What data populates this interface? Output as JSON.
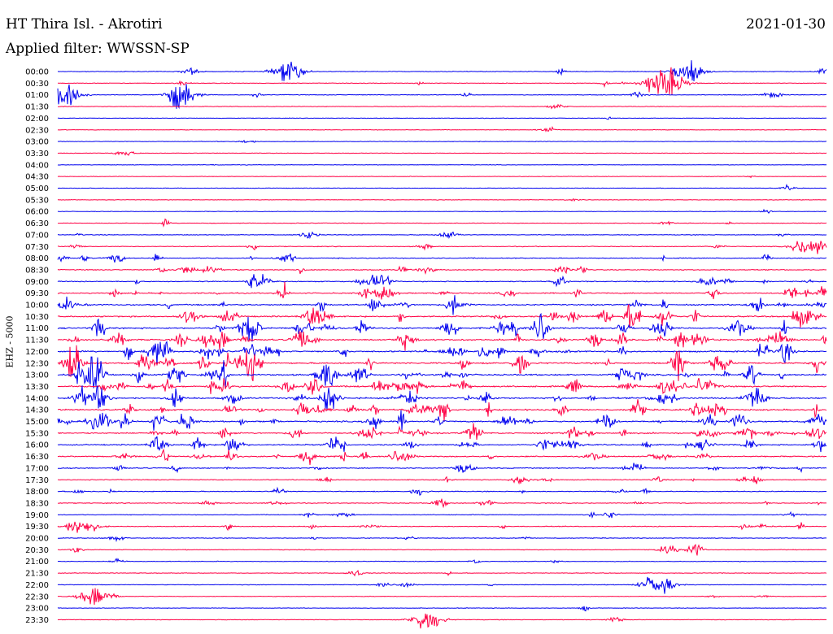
{
  "header": {
    "station": "HT Thira Isl. - Akrotiri",
    "date": "2021-01-30",
    "filter": "Applied filter: WWSSN-SP"
  },
  "channel_label": "EHZ - 5000",
  "colors": {
    "blue": "#0000ee",
    "red": "#ff0044",
    "background": "#ffffff"
  },
  "chart_data": {
    "type": "line",
    "title": "HT Thira Isl. - Akrotiri",
    "subtitle": "Applied filter: WWSSN-SP",
    "ylabel": "EHZ - 5000",
    "xlabel": "",
    "row_labels": [
      "00:00",
      "00:30",
      "01:00",
      "01:30",
      "02:00",
      "02:30",
      "03:00",
      "03:30",
      "04:00",
      "04:30",
      "05:00",
      "05:30",
      "06:00",
      "06:30",
      "07:00",
      "07:30",
      "08:00",
      "08:30",
      "09:00",
      "09:30",
      "10:00",
      "10:30",
      "11:00",
      "11:30",
      "12:00",
      "12:30",
      "13:00",
      "13:30",
      "14:00",
      "14:30",
      "15:00",
      "15:30",
      "16:00",
      "16:30",
      "17:00",
      "17:30",
      "18:00",
      "18:30",
      "19:00",
      "19:30",
      "20:00",
      "20:30",
      "21:00",
      "21:30",
      "22:00",
      "22:30",
      "23:00",
      "23:30"
    ],
    "row_color_pattern": [
      "blue",
      "red"
    ],
    "activity_level": [
      0.15,
      0.15,
      0.2,
      0.05,
      0.03,
      0.05,
      0.05,
      0.02,
      0.03,
      0.02,
      0.02,
      0.03,
      0.03,
      0.1,
      0.15,
      0.2,
      0.35,
      0.35,
      0.45,
      0.6,
      0.7,
      0.8,
      0.85,
      0.9,
      0.9,
      0.95,
      0.95,
      0.9,
      0.9,
      0.85,
      0.85,
      0.75,
      0.65,
      0.6,
      0.4,
      0.3,
      0.3,
      0.25,
      0.2,
      0.25,
      0.15,
      0.15,
      0.12,
      0.08,
      0.1,
      0.08,
      0.03,
      0.05
    ],
    "major_events": [
      {
        "row": "00:00",
        "position": 0.3,
        "amplitude": 0.9
      },
      {
        "row": "00:00",
        "position": 0.82,
        "amplitude": 1.0
      },
      {
        "row": "00:30",
        "position": 0.78,
        "amplitude": 1.0
      },
      {
        "row": "00:30",
        "position": 0.8,
        "amplitude": 0.8
      },
      {
        "row": "01:00",
        "position": 0.01,
        "amplitude": 0.9
      },
      {
        "row": "01:00",
        "position": 0.16,
        "amplitude": 1.0
      },
      {
        "row": "07:30",
        "position": 0.98,
        "amplitude": 1.0
      },
      {
        "row": "19:30",
        "position": 0.03,
        "amplitude": 0.8
      },
      {
        "row": "22:00",
        "position": 0.78,
        "amplitude": 1.0
      },
      {
        "row": "22:30",
        "position": 0.05,
        "amplitude": 1.0
      },
      {
        "row": "23:30",
        "position": 0.48,
        "amplitude": 1.0
      }
    ],
    "grid": false,
    "legend": "none"
  }
}
